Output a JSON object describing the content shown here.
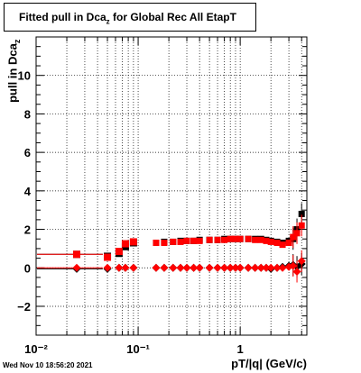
{
  "title_main": "Fitted pull in Dca",
  "title_sub": "z",
  "title_rest": " for Global Rec All EtapT",
  "ylabel_main": "pull in Dca",
  "ylabel_sub": "z",
  "xlabel": "pT/|q| (GeV/c)",
  "timestamp": "Wed Nov 10 18:56:20 2021",
  "chart_data": {
    "type": "scatter",
    "x_scale": "log",
    "xlim": [
      0.01,
      4.5
    ],
    "ylim": [
      -3.5,
      12
    ],
    "grid": true,
    "ytick_labels": [
      "−2",
      "0",
      "2",
      "4",
      "6",
      "8",
      "10"
    ],
    "ytick_values": [
      -2,
      0,
      2,
      4,
      6,
      8,
      10
    ],
    "xtick_labels": [
      "10⁻²",
      "10⁻¹",
      "1"
    ],
    "xtick_values": [
      0.01,
      0.1,
      1
    ],
    "series": [
      {
        "marker": "square",
        "color": "#000000",
        "x": [
          0.025,
          0.05,
          0.065,
          0.075,
          0.09,
          0.15,
          0.18,
          0.22,
          0.26,
          0.3,
          0.35,
          0.4,
          0.5,
          0.6,
          0.7,
          0.8,
          0.9,
          1.0,
          1.2,
          1.4,
          1.6,
          1.8,
          2.0,
          2.3,
          2.6,
          3.0,
          3.3,
          3.6,
          4.0
        ],
        "y": [
          0.7,
          0.6,
          0.75,
          1.1,
          1.3,
          1.3,
          1.35,
          1.35,
          1.4,
          1.4,
          1.4,
          1.45,
          1.45,
          1.45,
          1.5,
          1.5,
          1.5,
          1.5,
          1.5,
          1.5,
          1.5,
          1.45,
          1.4,
          1.35,
          1.3,
          1.4,
          1.5,
          2.0,
          2.8
        ]
      },
      {
        "marker": "square",
        "color": "#ff0000",
        "x": [
          0.025,
          0.05,
          0.065,
          0.075,
          0.09,
          0.15,
          0.18,
          0.22,
          0.26,
          0.3,
          0.35,
          0.4,
          0.5,
          0.6,
          0.7,
          0.8,
          0.9,
          1.0,
          1.2,
          1.4,
          1.6,
          1.8,
          2.0,
          2.3,
          2.6,
          3.0,
          3.3,
          3.6,
          4.0
        ],
        "y": [
          0.7,
          0.55,
          0.85,
          1.25,
          1.35,
          1.3,
          1.3,
          1.35,
          1.35,
          1.4,
          1.4,
          1.4,
          1.45,
          1.45,
          1.45,
          1.5,
          1.5,
          1.5,
          1.5,
          1.45,
          1.45,
          1.4,
          1.35,
          1.3,
          1.2,
          1.3,
          1.6,
          1.8,
          2.2
        ]
      },
      {
        "marker": "diamond",
        "color": "#000000",
        "x": [
          0.025,
          0.05,
          0.065,
          0.075,
          0.09,
          0.15,
          0.18,
          0.22,
          0.26,
          0.3,
          0.35,
          0.4,
          0.5,
          0.6,
          0.7,
          0.8,
          0.9,
          1.0,
          1.2,
          1.4,
          1.6,
          1.8,
          2.0,
          2.3,
          2.6,
          3.0,
          3.3,
          3.6,
          4.0
        ],
        "y": [
          -0.05,
          -0.05,
          0.0,
          0.0,
          0.0,
          0.0,
          0.0,
          0.0,
          0.0,
          0.0,
          0.0,
          0.0,
          0.0,
          0.0,
          0.0,
          0.0,
          0.0,
          0.0,
          0.0,
          0.0,
          0.0,
          0.0,
          -0.05,
          0.0,
          0.05,
          0.1,
          0.15,
          0.05,
          0.2
        ]
      },
      {
        "marker": "diamond",
        "color": "#ff0000",
        "x": [
          0.025,
          0.05,
          0.065,
          0.075,
          0.09,
          0.15,
          0.18,
          0.22,
          0.26,
          0.3,
          0.35,
          0.4,
          0.5,
          0.6,
          0.7,
          0.8,
          0.9,
          1.0,
          1.2,
          1.4,
          1.6,
          1.8,
          2.0,
          2.3,
          2.6,
          3.0,
          3.3,
          3.6,
          4.0
        ],
        "y": [
          0.0,
          0.0,
          0.0,
          0.0,
          0.0,
          0.0,
          0.0,
          0.0,
          0.0,
          0.0,
          0.0,
          0.0,
          0.0,
          0.0,
          0.0,
          0.0,
          0.0,
          0.0,
          0.0,
          0.0,
          0.0,
          0.0,
          0.0,
          0.0,
          0.0,
          0.05,
          0.1,
          -0.2,
          0.35
        ]
      }
    ]
  }
}
